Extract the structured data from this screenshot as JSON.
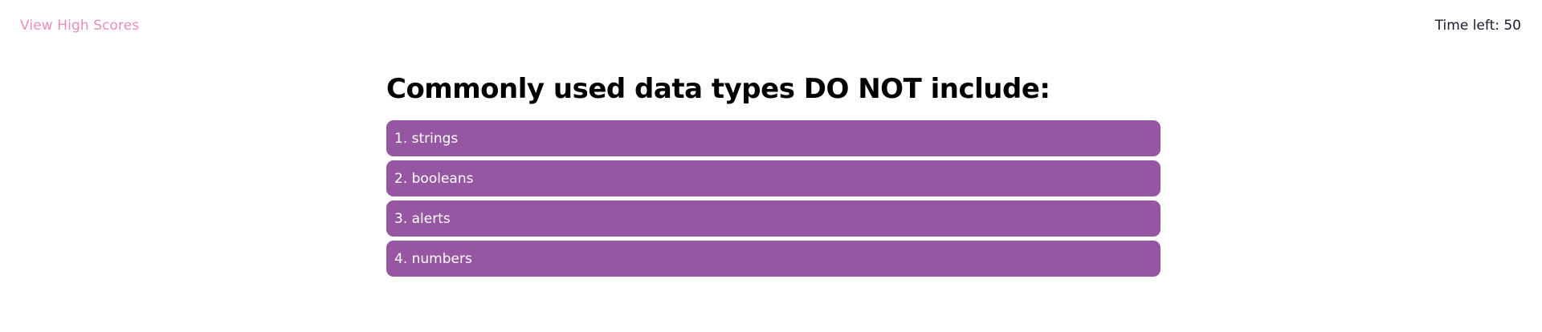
{
  "header": {
    "high_scores_label": "View High Scores",
    "timer_label": "Time left: 50"
  },
  "quiz": {
    "question": "Commonly used data types DO NOT include:",
    "choices": [
      {
        "label": "1. strings"
      },
      {
        "label": "2. booleans"
      },
      {
        "label": "3. alerts"
      },
      {
        "label": "4. numbers"
      }
    ]
  },
  "colors": {
    "link": "#e88fb5",
    "choice_background": "#9656a1",
    "choice_text": "#ffffff",
    "heading": "#000000"
  }
}
